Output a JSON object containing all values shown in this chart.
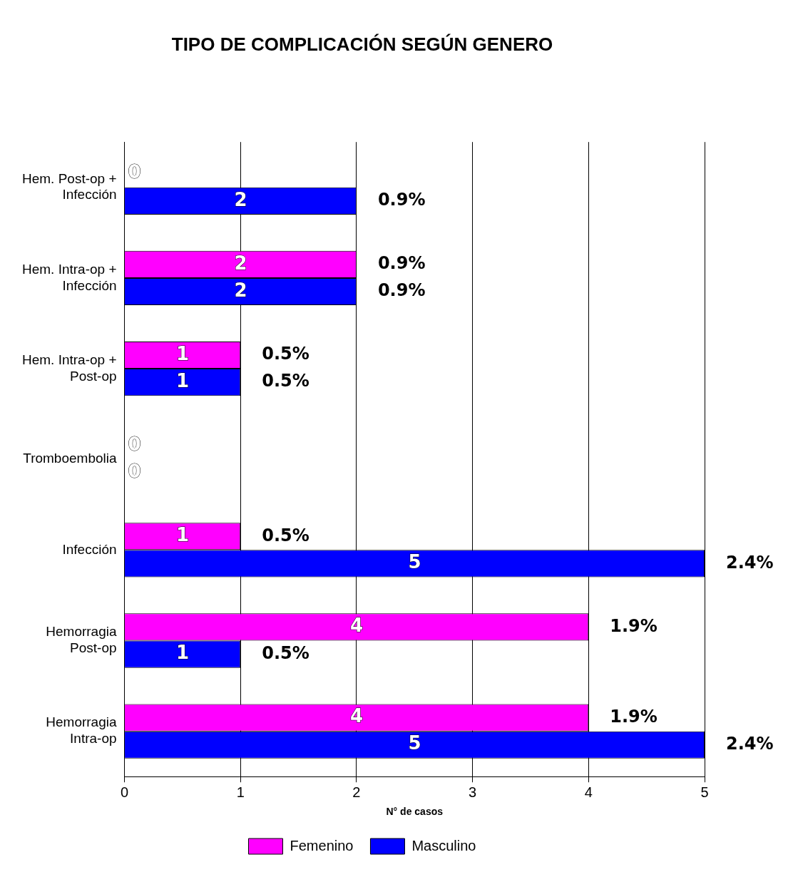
{
  "chart_data": {
    "type": "bar",
    "orientation": "horizontal",
    "title": "TIPO DE COMPLICACIÓN SEGÚN GENERO",
    "xlabel": "N° de casos",
    "categories": [
      "Hem. Post-op + Infección",
      "Hem. Intra-op + Infección",
      "Hem. Intra-op + Post-op",
      "Tromboembolia",
      "Infección",
      "Hemorragia Post-op",
      "Hemorragia Intra-op"
    ],
    "series": [
      {
        "name": "Femenino",
        "color": "#ff00ff",
        "values": [
          0,
          2,
          1,
          0,
          1,
          4,
          4
        ]
      },
      {
        "name": "Masculino",
        "color": "#0000ff",
        "values": [
          2,
          2,
          1,
          0,
          5,
          1,
          5
        ]
      }
    ],
    "annotations": [
      {
        "text": "0.9%",
        "x": 2,
        "y": "Hem. Post-op + Infección"
      },
      {
        "text": "0.9%",
        "x": 2,
        "y": "Hem. Intra-op + Infección"
      },
      {
        "text": "0.9%",
        "x": 2,
        "y": "Hem. Intra-op + Infección"
      },
      {
        "text": "0.5%",
        "x": 1,
        "y": "Hem. Intra-op + Post-op"
      },
      {
        "text": "0.5%",
        "x": 1,
        "y": "Hem. Intra-op + Post-op"
      },
      {
        "text": "0.5%",
        "x": 1,
        "y": "Infección"
      },
      {
        "text": "2.4%",
        "x": 5,
        "y": "Infección"
      },
      {
        "text": "1.9%",
        "x": 4,
        "y": "Hemorragia Post-op"
      },
      {
        "text": "0.5%",
        "x": 1,
        "y": "Hemorragia Post-op"
      },
      {
        "text": "1.9%",
        "x": 4,
        "y": "Hemorragia Intra-op"
      },
      {
        "text": "2.4%",
        "x": 5,
        "y": "Hemorragia Intra-op"
      }
    ],
    "xlim": [
      0,
      5
    ],
    "xticks": [
      0,
      1,
      2,
      3,
      4,
      5
    ],
    "grid": "x",
    "legend": "bottom",
    "data_labels": true
  }
}
